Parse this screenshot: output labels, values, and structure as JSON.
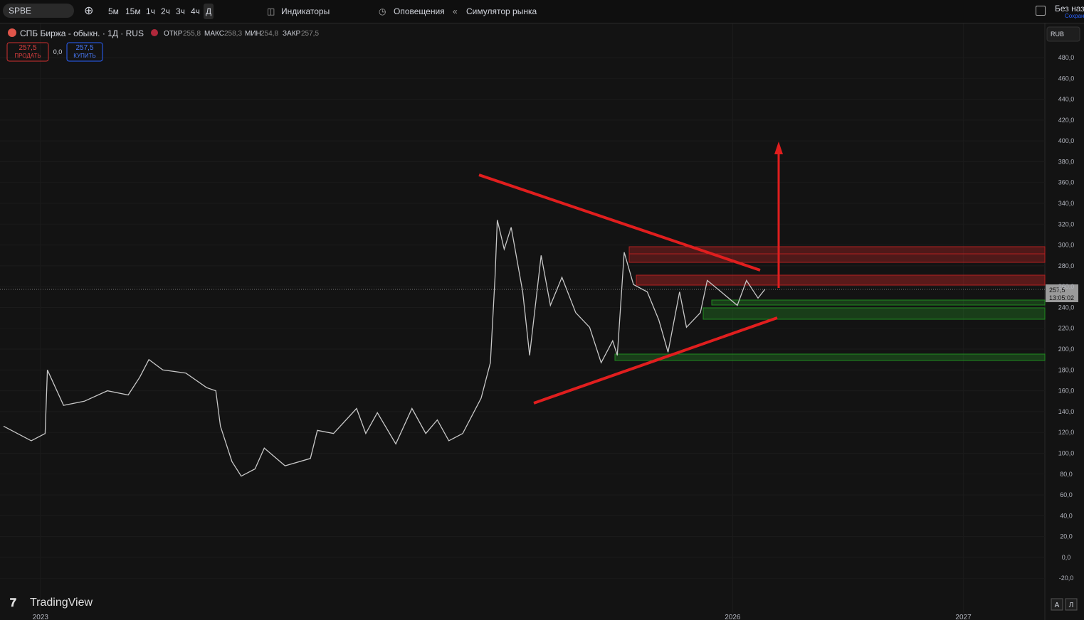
{
  "toolbar": {
    "symbol": "SPBE",
    "intervals": [
      "5м",
      "15м",
      "1ч",
      "2ч",
      "3ч",
      "4ч",
      "Д"
    ],
    "indicators": "Индикаторы",
    "alerts": "Оповещения",
    "replay": "Симулятор рынка",
    "layout_name": "Без назв",
    "save": "Сохран"
  },
  "legend": {
    "title": "СПБ Биржа - обыкн. · 1Д · RUS",
    "open_label": "ОТКР",
    "open": "255,8",
    "high_label": "МАКС",
    "high": "258,3",
    "low_label": "МИН",
    "low": "254,8",
    "close_label": "ЗАКР",
    "close": "257,5",
    "sell_price": "257,5",
    "sell": "ПРОДАТЬ",
    "spread": "0,0",
    "buy_price": "257,5",
    "buy": "КУПИТЬ"
  },
  "currency": "RUB",
  "last_price_label": "257,5",
  "countdown": "13:05:02",
  "logo": "TradingView",
  "scale_buttons": [
    "A",
    "Л"
  ],
  "chart_data": {
    "type": "line",
    "series": [
      {
        "name": "SPBE",
        "color": "#c8c8c8",
        "x": [
          2022.84,
          2022.96,
          2023.02,
          2023.03,
          2023.1,
          2023.19,
          2023.29,
          2023.38,
          2023.43,
          2023.47,
          2023.53,
          2023.63,
          2023.72,
          2023.76,
          2023.78,
          2023.83,
          2023.87,
          2023.93,
          2023.97,
          2024.06,
          2024.17,
          2024.2,
          2024.27,
          2024.37,
          2024.41,
          2024.46,
          2024.54,
          2024.61,
          2024.67,
          2024.72,
          2024.77,
          2024.83,
          2024.91,
          2024.95,
          2024.97,
          2024.98,
          2025.01,
          2025.04,
          2025.09,
          2025.12,
          2025.17,
          2025.21,
          2025.26,
          2025.32,
          2025.38,
          2025.43,
          2025.48,
          2025.5,
          2025.53,
          2025.57,
          2025.63,
          2025.68,
          2025.72,
          2025.77,
          2025.8,
          2025.86,
          2025.89,
          2025.95,
          2026.02,
          2026.06,
          2026.11,
          2026.14
        ],
        "values": [
          126,
          112,
          119,
          180,
          146,
          150,
          160,
          156,
          173,
          190,
          180,
          177,
          163,
          160,
          126,
          92,
          78,
          85,
          105,
          88,
          95,
          122,
          119,
          143,
          119,
          139,
          109,
          143,
          119,
          132,
          112,
          119,
          153,
          187,
          269,
          324,
          296,
          317,
          255,
          194,
          290,
          242,
          269,
          235,
          221,
          187,
          208,
          194,
          293,
          262,
          255,
          228,
          197,
          255,
          221,
          235,
          266,
          255,
          242,
          266,
          249,
          257.5
        ]
      }
    ],
    "xlim": [
      2022.84,
      2027.35
    ],
    "xticks": [
      2023,
      2026,
      2027
    ],
    "ylim": [
      -53.3,
      510.7
    ],
    "yticks": [
      {
        "value": 480,
        "label": "480,0"
      },
      {
        "value": 460,
        "label": "460,0"
      },
      {
        "value": 440,
        "label": "440,0"
      },
      {
        "value": 420,
        "label": "420,0"
      },
      {
        "value": 400,
        "label": "400,0"
      },
      {
        "value": 380,
        "label": "380,0"
      },
      {
        "value": 360,
        "label": "360,0"
      },
      {
        "value": 340,
        "label": "340,0"
      },
      {
        "value": 320,
        "label": "320,0"
      },
      {
        "value": 300,
        "label": "300,0"
      },
      {
        "value": 280,
        "label": "280,0"
      },
      {
        "value": 260,
        "label": "260,0"
      },
      {
        "value": 240,
        "label": "240,0"
      },
      {
        "value": 220,
        "label": "220,0"
      },
      {
        "value": 200,
        "label": "200,0"
      },
      {
        "value": 180,
        "label": "180,0"
      },
      {
        "value": 160,
        "label": "160,0"
      },
      {
        "value": 140,
        "label": "140,0"
      },
      {
        "value": 120,
        "label": "120,0"
      },
      {
        "value": 100,
        "label": "100,0"
      },
      {
        "value": 80,
        "label": "80,0"
      },
      {
        "value": 60,
        "label": "60,0"
      },
      {
        "value": 40,
        "label": "40,0"
      },
      {
        "value": 20,
        "label": "20,0"
      },
      {
        "value": 0,
        "label": "0,0"
      },
      {
        "value": -20,
        "label": "-20,0"
      }
    ],
    "grid": true
  }
}
